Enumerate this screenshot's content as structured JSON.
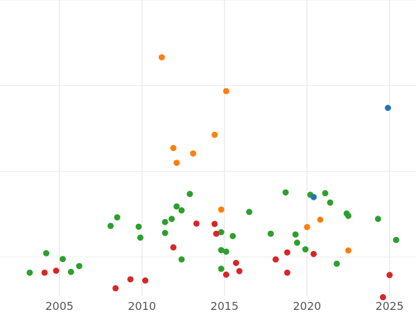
{
  "chart_data": {
    "type": "scatter",
    "title": "",
    "xlabel": "",
    "ylabel": "",
    "xlim": [
      2001.4,
      2026.6
    ],
    "ylim": [
      0,
      7.6
    ],
    "x_ticks": [
      2005,
      2010,
      2015,
      2020,
      2025
    ],
    "y_grid": [
      1.0,
      3.2,
      5.4,
      7.6
    ],
    "grid": true,
    "legend": "none",
    "series": [
      {
        "color": "#2ca02c",
        "points": [
          [
            2003.2,
            0.6
          ],
          [
            2004.2,
            1.1
          ],
          [
            2005.2,
            0.95
          ],
          [
            2005.7,
            0.62
          ],
          [
            2006.2,
            0.77
          ],
          [
            2008.1,
            1.8
          ],
          [
            2008.5,
            2.02
          ],
          [
            2009.8,
            1.78
          ],
          [
            2009.9,
            1.5
          ],
          [
            2011.4,
            1.62
          ],
          [
            2011.4,
            1.9
          ],
          [
            2011.8,
            1.98
          ],
          [
            2012.1,
            2.3
          ],
          [
            2012.4,
            0.94
          ],
          [
            2012.4,
            2.2
          ],
          [
            2012.9,
            2.62
          ],
          [
            2014.8,
            1.18
          ],
          [
            2014.8,
            1.64
          ],
          [
            2014.8,
            0.7
          ],
          [
            2015.1,
            1.14
          ],
          [
            2015.5,
            1.54
          ],
          [
            2016.5,
            2.16
          ],
          [
            2017.8,
            1.6
          ],
          [
            2018.7,
            2.66
          ],
          [
            2019.3,
            1.58
          ],
          [
            2019.4,
            1.37
          ],
          [
            2019.9,
            1.2
          ],
          [
            2020.2,
            2.6
          ],
          [
            2021.1,
            2.64
          ],
          [
            2021.4,
            2.4
          ],
          [
            2021.8,
            0.83
          ],
          [
            2022.4,
            2.12
          ],
          [
            2022.5,
            2.06
          ],
          [
            2024.3,
            1.98
          ],
          [
            2025.4,
            1.44
          ]
        ]
      },
      {
        "color": "#d62728",
        "points": [
          [
            2004.1,
            0.6
          ],
          [
            2004.8,
            0.65
          ],
          [
            2008.4,
            0.2
          ],
          [
            2009.3,
            0.43
          ],
          [
            2010.2,
            0.4
          ],
          [
            2011.9,
            1.25
          ],
          [
            2013.3,
            1.86
          ],
          [
            2014.4,
            1.85
          ],
          [
            2014.5,
            1.6
          ],
          [
            2015.1,
            0.55
          ],
          [
            2015.7,
            0.85
          ],
          [
            2015.9,
            0.64
          ],
          [
            2018.1,
            0.94
          ],
          [
            2018.8,
            1.12
          ],
          [
            2018.8,
            0.6
          ],
          [
            2020.4,
            1.08
          ],
          [
            2024.6,
            -0.03
          ],
          [
            2025.0,
            0.54
          ]
        ]
      },
      {
        "color": "#ff7f0e",
        "points": [
          [
            2011.2,
            6.13
          ],
          [
            2011.9,
            3.8
          ],
          [
            2012.1,
            3.42
          ],
          [
            2013.1,
            3.66
          ],
          [
            2014.4,
            4.14
          ],
          [
            2014.8,
            2.22
          ],
          [
            2015.1,
            5.26
          ],
          [
            2020.0,
            1.77
          ],
          [
            2020.8,
            1.96
          ],
          [
            2022.5,
            1.17
          ]
        ]
      },
      {
        "color": "#1f77b4",
        "points": [
          [
            2020.4,
            2.54
          ],
          [
            2024.9,
            4.83
          ]
        ]
      }
    ]
  }
}
